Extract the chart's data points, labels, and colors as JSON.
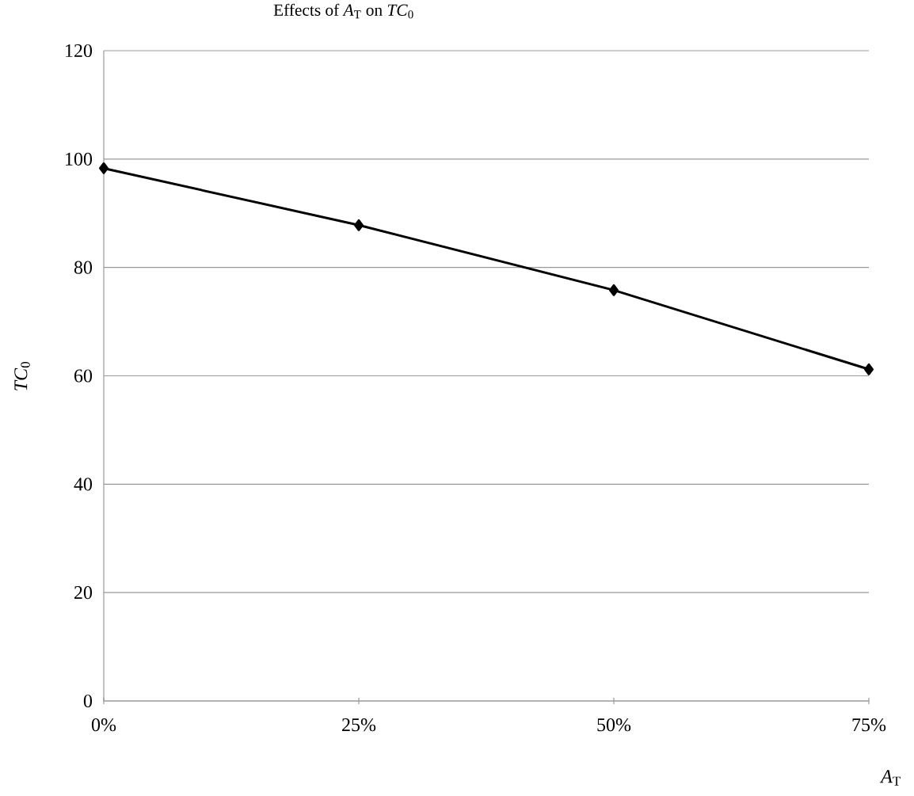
{
  "chart_data": {
    "type": "line",
    "title": "Effects of *A*$_{T}$ on *TC*$_{0}$",
    "xlabel": "*A*$_{T}$",
    "ylabel": "*TC*$_{0}$",
    "categories": [
      "0%",
      "25%",
      "50%",
      "75%"
    ],
    "series": [
      {
        "color": "#000000",
        "values": [
          98.3,
          87.8,
          75.8,
          61.2
        ]
      }
    ],
    "ylim": [
      0,
      120
    ],
    "yticks": [
      0,
      20,
      40,
      60,
      80,
      100,
      120
    ],
    "grid": "y",
    "marker": "diamond",
    "line_style": "solid"
  }
}
